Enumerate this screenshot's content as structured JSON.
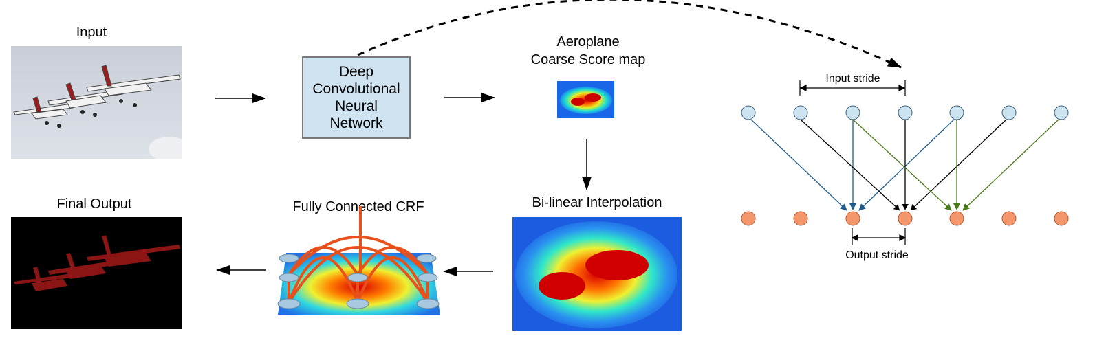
{
  "labels": {
    "input": "Input",
    "dcnn": "Deep Convolutional Neural Network",
    "score_map_line1": "Aeroplane",
    "score_map_line2": "Coarse Score map",
    "bilinear": "Bi-linear Interpolation",
    "crf": "Fully Connected CRF",
    "final_output": "Final Output",
    "input_stride": "Input stride",
    "output_stride": "Output stride"
  },
  "colors": {
    "box_fill": "#cfe3f1",
    "input_node": "#cce3f0",
    "output_node": "#f4976c",
    "arrow_blue": "#1f5d91",
    "arrow_green": "#4a7a1a",
    "arrow_black": "#000000",
    "plane_red": "#8b1414"
  },
  "icons": {
    "input_image": "airplanes-photo",
    "score_map": "heatmap-icon",
    "crf_graph": "crf-graph-icon",
    "final_output_image": "segmentation-mask"
  }
}
